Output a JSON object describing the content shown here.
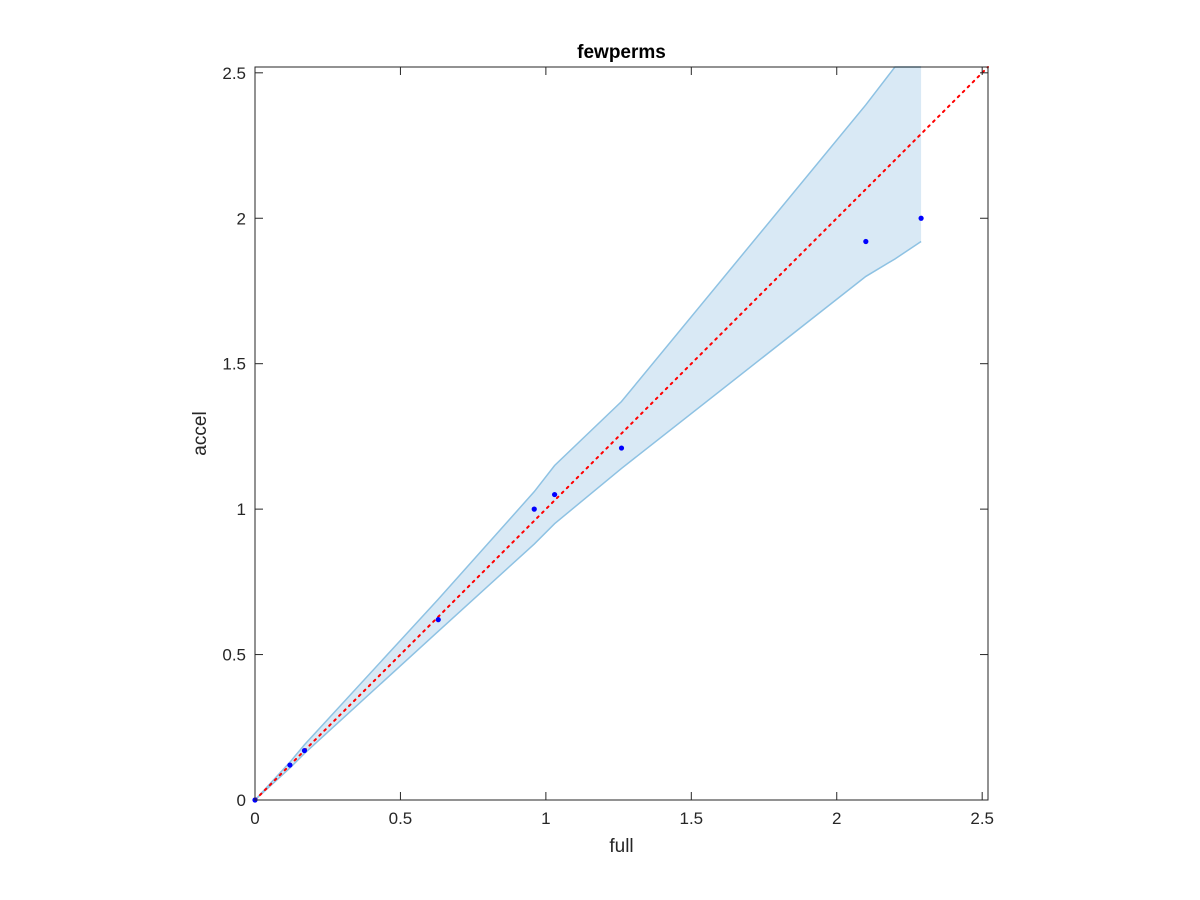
{
  "chart_data": {
    "type": "scatter",
    "title": "fewperms",
    "xlabel": "full",
    "ylabel": "accel",
    "xlim": [
      0,
      2.52
    ],
    "ylim": [
      0,
      2.52
    ],
    "x_ticks": [
      "0",
      "0.5",
      "1",
      "1.5",
      "2",
      "2.5"
    ],
    "y_ticks": [
      "0",
      "0.5",
      "1",
      "1.5",
      "2",
      "2.5"
    ],
    "grid": false,
    "legend": "none",
    "points": {
      "x": [
        0,
        0.12,
        0.17,
        0.63,
        0.96,
        1.03,
        1.26,
        2.1,
        2.29
      ],
      "y": [
        0,
        0.12,
        0.17,
        0.62,
        1.0,
        1.05,
        1.21,
        1.92,
        2.0
      ]
    },
    "band": {
      "x": [
        0,
        0.12,
        0.17,
        0.63,
        0.96,
        1.03,
        1.26,
        2.1,
        2.2,
        2.29
      ],
      "upper": [
        0,
        0.13,
        0.19,
        0.69,
        1.06,
        1.15,
        1.37,
        2.39,
        2.52,
        2.52
      ],
      "lower": [
        0,
        0.11,
        0.16,
        0.58,
        0.88,
        0.95,
        1.14,
        1.8,
        1.86,
        1.92
      ]
    },
    "reference_line": {
      "style": "dotted",
      "x": [
        0,
        2.52
      ],
      "y": [
        0,
        2.52
      ]
    },
    "colors": {
      "points": "#0000ff",
      "band_fill": "#d9e9f5",
      "band_edge": "#8ec2e3",
      "reference_line": "#ff0000",
      "axes": "#262626"
    }
  }
}
